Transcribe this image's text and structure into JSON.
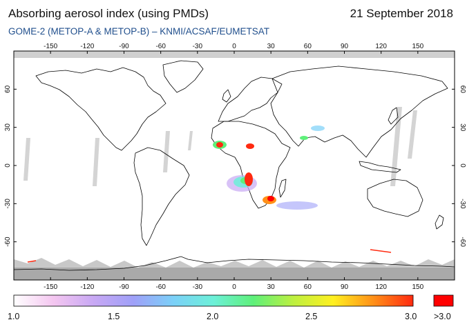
{
  "header": {
    "title": "Absorbing aerosol index (using PMDs)",
    "date": "21 September 2018",
    "subtitle": "GOME-2 (METOP-A & METOP-B)  –  KNMI/ACSAF/EUMETSAT"
  },
  "map": {
    "projection": "equirectangular",
    "lon_ticks": [
      "-150",
      "-120",
      "-90",
      "-60",
      "-30",
      "0",
      "30",
      "60",
      "90",
      "120",
      "150"
    ],
    "lat_ticks": [
      "60",
      "30",
      "0",
      "-30",
      "-60"
    ],
    "colors": {
      "land_outline": "#000000",
      "no_data": "#a9a9a9",
      "orbit_gap": "#d0d0d0",
      "frame": "#000000"
    }
  },
  "colorbar": {
    "labels": [
      "1.0",
      "1.5",
      "2.0",
      "2.5",
      "3.0"
    ],
    "overflow_label": ">3.0",
    "gradient": [
      "#ffffff",
      "#f4c6f0",
      "#c8a8f4",
      "#9fa0f8",
      "#7bd0f8",
      "#6cf0d8",
      "#5ef07a",
      "#bdf040",
      "#fff020",
      "#ff9018",
      "#ff2a10"
    ],
    "overflow_color": "#ff0000"
  }
}
